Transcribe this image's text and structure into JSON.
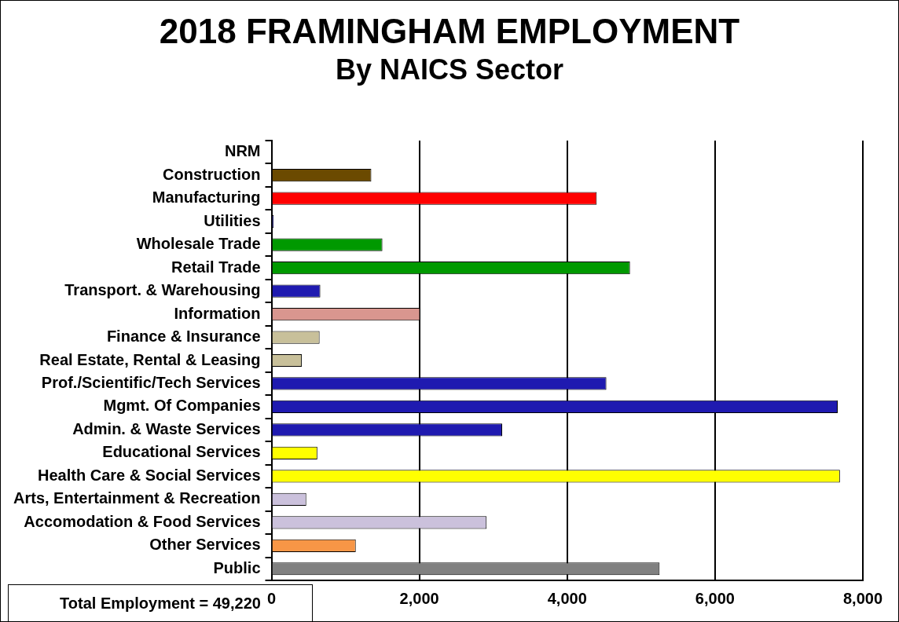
{
  "chart_data": {
    "type": "bar",
    "orientation": "horizontal",
    "title": "2018 FRAMINGHAM EMPLOYMENT",
    "subtitle": "By NAICS Sector",
    "categories": [
      "NRM",
      "Construction",
      "Manufacturing",
      "Utilities",
      "Wholesale Trade",
      "Retail Trade",
      "Transport. & Warehousing",
      "Information",
      "Finance & Insurance",
      "Real Estate, Rental & Leasing",
      "Prof./Scientific/Tech Services",
      "Mgmt. Of Companies",
      "Admin. & Waste Services",
      "Educational Services",
      "Health Care & Social Services",
      "Arts, Entertainment & Recreation",
      "Accomodation & Food Services",
      "Other Services",
      "Public"
    ],
    "values": [
      0,
      1350,
      4400,
      30,
      1500,
      4850,
      660,
      2010,
      650,
      410,
      4530,
      7660,
      3120,
      620,
      7690,
      470,
      2910,
      1140,
      5250
    ],
    "colors": [
      "#6b4a00",
      "#6b4a00",
      "#ff0000",
      "#1f1ab0",
      "#009900",
      "#009900",
      "#1f1ab0",
      "#d9968f",
      "#c8c09a",
      "#c8c09a",
      "#1f1ab0",
      "#1f1ab0",
      "#1f1ab0",
      "#ffff00",
      "#ffff00",
      "#cbc1dc",
      "#cbc1dc",
      "#f79646",
      "#808080"
    ],
    "xlim": [
      0,
      8000
    ],
    "xticks": [
      {
        "value": 0,
        "label": "0"
      },
      {
        "value": 2000,
        "label": "2,000"
      },
      {
        "value": 4000,
        "label": "4,000"
      },
      {
        "value": 6000,
        "label": "6,000"
      },
      {
        "value": 8000,
        "label": "8,000"
      }
    ],
    "grid": "x",
    "legend": false,
    "annotations": [
      "Total Employment = 49,220"
    ]
  }
}
